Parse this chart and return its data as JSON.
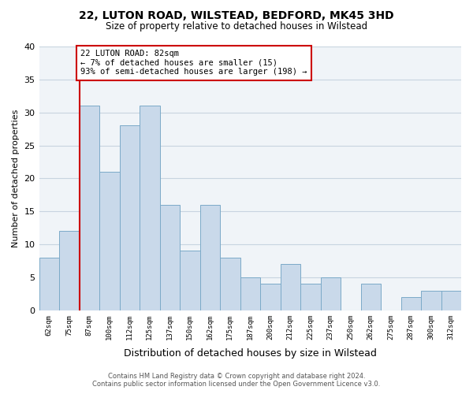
{
  "title": "22, LUTON ROAD, WILSTEAD, BEDFORD, MK45 3HD",
  "subtitle": "Size of property relative to detached houses in Wilstead",
  "xlabel": "Distribution of detached houses by size in Wilstead",
  "ylabel": "Number of detached properties",
  "bin_labels": [
    "62sqm",
    "75sqm",
    "87sqm",
    "100sqm",
    "112sqm",
    "125sqm",
    "137sqm",
    "150sqm",
    "162sqm",
    "175sqm",
    "187sqm",
    "200sqm",
    "212sqm",
    "225sqm",
    "237sqm",
    "250sqm",
    "262sqm",
    "275sqm",
    "287sqm",
    "300sqm",
    "312sqm"
  ],
  "bar_values": [
    8,
    12,
    31,
    21,
    28,
    31,
    16,
    9,
    16,
    8,
    5,
    4,
    7,
    4,
    5,
    0,
    4,
    0,
    2,
    3,
    3
  ],
  "bar_color": "#c9d9ea",
  "bar_edge_color": "#7baac8",
  "vline_color": "#cc0000",
  "annotation_text": "22 LUTON ROAD: 82sqm\n← 7% of detached houses are smaller (15)\n93% of semi-detached houses are larger (198) →",
  "annotation_box_color": "white",
  "annotation_box_edge_color": "#cc0000",
  "ylim": [
    0,
    40
  ],
  "yticks": [
    0,
    5,
    10,
    15,
    20,
    25,
    30,
    35,
    40
  ],
  "background_color": "#ffffff",
  "plot_bg_color": "#f0f4f8",
  "grid_color": "#c8d4e0",
  "footer_line1": "Contains HM Land Registry data © Crown copyright and database right 2024.",
  "footer_line2": "Contains public sector information licensed under the Open Government Licence v3.0."
}
